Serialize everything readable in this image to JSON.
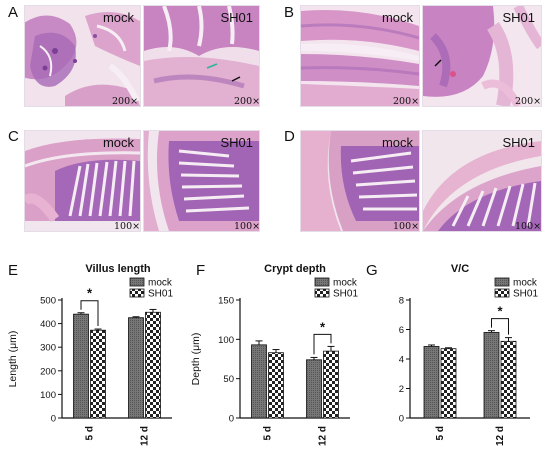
{
  "histology": {
    "panels": [
      {
        "letter": "A",
        "mock_label": "mock",
        "sh_label": "SH01",
        "mag_mock": "200×",
        "mag_sh": "200×"
      },
      {
        "letter": "B",
        "mock_label": "mock",
        "sh_label": "SH01",
        "mag_mock": "200×",
        "mag_sh": "200×"
      },
      {
        "letter": "C",
        "mock_label": "mock",
        "sh_label": "SH01",
        "mag_mock": "100×",
        "mag_sh": "100×"
      },
      {
        "letter": "D",
        "mock_label": "mock",
        "sh_label": "SH01",
        "mag_mock": "100×",
        "mag_sh": "100×"
      }
    ],
    "colors": {
      "tissue_pink": "#e7a6c6",
      "tissue_purple": "#9d5fb0",
      "background": "#f3e7ef",
      "muscle": "#e9a8c2"
    }
  },
  "chart_data": [
    {
      "letter": "E",
      "type": "bar",
      "title": "Villus length",
      "ylabel": "Length (μm)",
      "ylim": [
        0,
        500
      ],
      "yticks": [
        "0",
        "100",
        "200",
        "300",
        "400",
        "500"
      ],
      "categories": [
        "5 d",
        "12 d"
      ],
      "series": [
        {
          "name": "mock",
          "values": [
            440,
            425
          ],
          "errors": [
            6,
            4
          ]
        },
        {
          "name": "SH01",
          "values": [
            372,
            448
          ],
          "errors": [
            5,
            12
          ]
        }
      ],
      "significance": {
        "category_index": 0,
        "marker": "*"
      },
      "legend": "top-right"
    },
    {
      "letter": "F",
      "type": "bar",
      "title": "Crypt depth",
      "ylabel": "Depth (μm)",
      "ylim": [
        0,
        150
      ],
      "yticks": [
        "0",
        "50",
        "100",
        "150"
      ],
      "categories": [
        "5 d",
        "12 d"
      ],
      "series": [
        {
          "name": "mock",
          "values": [
            93,
            74
          ],
          "errors": [
            5,
            3
          ]
        },
        {
          "name": "SH01",
          "values": [
            83,
            85
          ],
          "errors": [
            4,
            6
          ]
        }
      ],
      "significance": {
        "category_index": 1,
        "marker": "*"
      },
      "legend": "top-right"
    },
    {
      "letter": "G",
      "type": "bar",
      "title": "V/C",
      "ylabel": "",
      "ylim": [
        0,
        8
      ],
      "yticks": [
        "0",
        "2",
        "4",
        "6",
        "8"
      ],
      "categories": [
        "5 d",
        "12 d"
      ],
      "series": [
        {
          "name": "mock",
          "values": [
            4.85,
            5.8
          ],
          "errors": [
            0.1,
            0.12
          ]
        },
        {
          "name": "SH01",
          "values": [
            4.7,
            5.2
          ],
          "errors": [
            0.06,
            0.25
          ]
        }
      ],
      "significance": {
        "category_index": 1,
        "marker": "*"
      },
      "legend": "top-right"
    }
  ]
}
